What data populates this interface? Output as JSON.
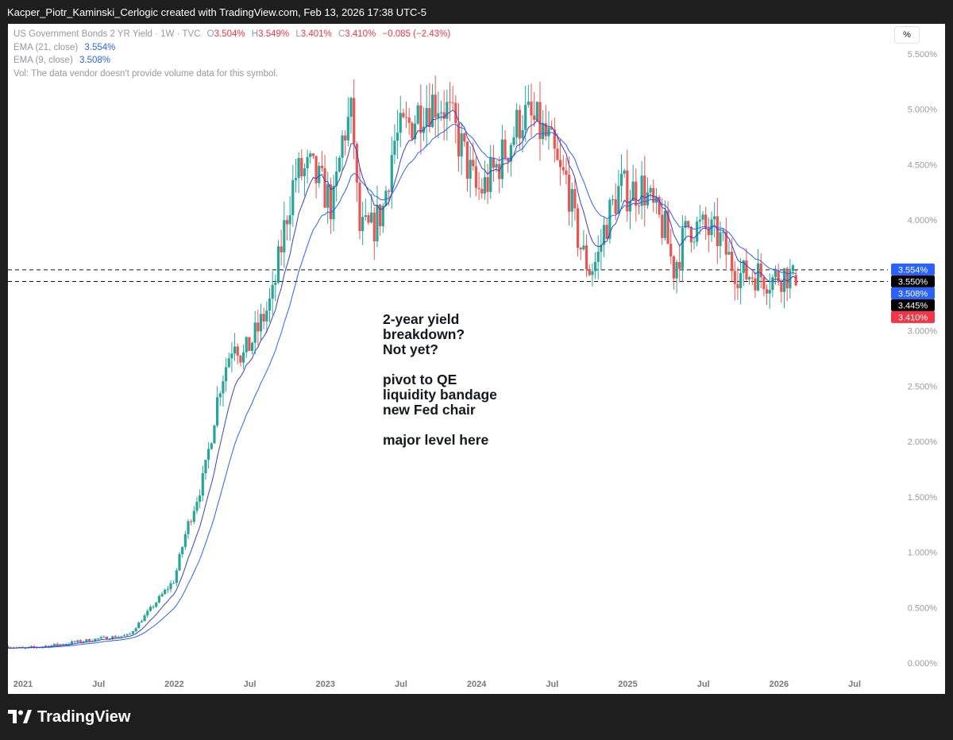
{
  "header": {
    "credit": "Kacper_Piotr_Kaminski_Cerlogic created with TradingView.com, Feb 13, 2026 17:38 UTC-5"
  },
  "legend": {
    "symbol": "US Government Bonds 2 YR Yield · 1W · TVC",
    "o_label": "O",
    "o_value": "3.504%",
    "h_label": "H",
    "h_value": "3.549%",
    "l_label": "L",
    "l_value": "3.401%",
    "c_label": "C",
    "c_value": "3.410%",
    "change": "−0.085 (−2.43%)",
    "ema21_label": "EMA (21, close)",
    "ema21_value": "3.554%",
    "ema9_label": "EMA (9, close)",
    "ema9_value": "3.508%",
    "vol_note": "Vol: The data vendor doesn't provide volume data for this symbol."
  },
  "scale_button": "%",
  "annotation": "2-year yield\nbreakdown?\nNot yet?\n\npivot to QE\nliquidity bandage\nnew Fed chair\n\nmajor level here",
  "footer": {
    "brand": "TradingView"
  },
  "colors": {
    "up": "#26a69a",
    "down": "#ef5350",
    "ema21": "#2962ff",
    "ema9": "#3a3fd1",
    "price_tag": "#f23645",
    "dark_tag": "#000000"
  },
  "chart_data": {
    "type": "candlestick",
    "title": "US Government Bonds 2 YR Yield · 1W · TVC",
    "y_unit": "%",
    "ylim": [
      -0.05,
      5.7
    ],
    "y_ticks": [
      "5.500%",
      "5.000%",
      "4.500%",
      "4.000%",
      "3.000%",
      "2.500%",
      "2.000%",
      "1.500%",
      "1.000%",
      "0.500%",
      "0.000%"
    ],
    "y_tick_values": [
      5.5,
      5.0,
      4.5,
      4.0,
      3.0,
      2.5,
      2.0,
      1.5,
      1.0,
      0.5,
      0.0
    ],
    "x_ticks": [
      "2021",
      "Jul",
      "2022",
      "Jul",
      "2023",
      "Jul",
      "2024",
      "Jul",
      "2025",
      "Jul",
      "2026",
      "Jul"
    ],
    "x_tick_values": [
      2021.0,
      2021.5,
      2022.0,
      2022.5,
      2023.0,
      2023.5,
      2024.0,
      2024.5,
      2025.0,
      2025.5,
      2026.0,
      2026.5
    ],
    "xlim": [
      2020.9,
      2026.72
    ],
    "horizontal_levels": [
      3.445,
      3.55
    ],
    "price_tags": [
      {
        "value": 3.554,
        "label": "3.554%",
        "color": "#2962ff"
      },
      {
        "value": 3.55,
        "label": "3.550%",
        "color": "#000000"
      },
      {
        "value": 3.508,
        "label": "3.508%",
        "color": "#2962ff"
      },
      {
        "value": 3.445,
        "label": "3.445%",
        "color": "#000000"
      },
      {
        "value": 3.41,
        "label": "3.410%",
        "color": "#f23645"
      }
    ],
    "close_path": {
      "t": [
        2020.9,
        2021.0,
        2021.2,
        2021.5,
        2021.7,
        2021.85,
        2022.0,
        2022.08,
        2022.2,
        2022.3,
        2022.4,
        2022.45,
        2022.55,
        2022.65,
        2022.75,
        2022.8,
        2022.9,
        2023.0,
        2023.05,
        2023.12,
        2023.18,
        2023.22,
        2023.3,
        2023.38,
        2023.45,
        2023.55,
        2023.65,
        2023.75,
        2023.8,
        2023.9,
        2024.0,
        2024.05,
        2024.12,
        2024.2,
        2024.3,
        2024.4,
        2024.48,
        2024.55,
        2024.6,
        2024.65,
        2024.7,
        2024.75,
        2024.8,
        2024.85,
        2024.95,
        2025.0,
        2025.1,
        2025.18,
        2025.25,
        2025.3,
        2025.4,
        2025.5,
        2025.6,
        2025.68,
        2025.75,
        2025.85,
        2025.95,
        2026.0,
        2026.05,
        2026.12
      ],
      "c": [
        0.15,
        0.13,
        0.16,
        0.22,
        0.25,
        0.5,
        0.75,
        1.2,
        1.7,
        2.5,
        2.95,
        2.75,
        3.0,
        3.3,
        4.1,
        4.4,
        4.45,
        4.25,
        4.1,
        4.8,
        4.95,
        3.9,
        3.9,
        4.1,
        4.7,
        4.85,
        5.05,
        5.08,
        5.0,
        4.65,
        4.25,
        4.3,
        4.45,
        4.65,
        4.95,
        4.85,
        4.7,
        4.4,
        4.35,
        3.95,
        3.7,
        3.55,
        3.65,
        3.95,
        4.3,
        4.25,
        4.3,
        4.05,
        3.9,
        3.55,
        3.95,
        3.92,
        3.85,
        3.62,
        3.5,
        3.52,
        3.46,
        3.5,
        3.52,
        3.41
      ]
    },
    "ema21_last": 3.554,
    "ema9_last": 3.508,
    "ohlc_last": {
      "open": 3.504,
      "high": 3.549,
      "low": 3.401,
      "close": 3.41
    },
    "grid": false
  }
}
